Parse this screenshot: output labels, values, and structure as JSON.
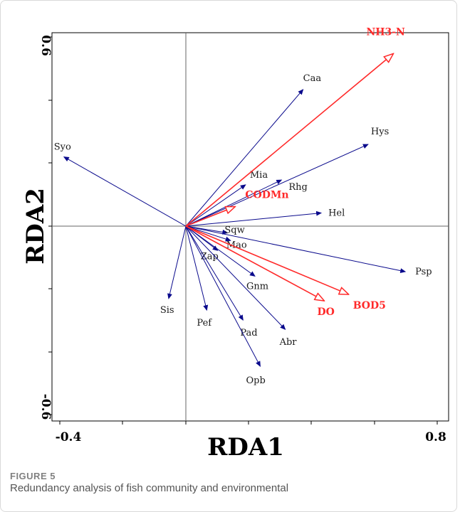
{
  "figure": {
    "label": "FIGURE 5",
    "caption": "Redundancy analysis of fish community and environmental"
  },
  "chart_data": {
    "type": "scatter",
    "subtype": "rda-biplot",
    "title": "",
    "xlabel": "RDA1",
    "ylabel": "RDA2",
    "xlim": [
      -0.4,
      0.8
    ],
    "ylim": [
      -0.6,
      0.6
    ],
    "x_tick_labels": [
      "-0.4",
      "0.8"
    ],
    "y_tick_labels": [
      "0.6",
      "-0.6"
    ],
    "grid": false,
    "colors": {
      "species": "#0a0a8c",
      "environment": "#ff2a2a"
    },
    "species": [
      {
        "name": "Syo",
        "x": -0.39,
        "y": 0.216
      },
      {
        "name": "Caa",
        "x": 0.375,
        "y": 0.426
      },
      {
        "name": "Hys",
        "x": 0.583,
        "y": 0.255
      },
      {
        "name": "Mia",
        "x": 0.191,
        "y": 0.129
      },
      {
        "name": "Rhg",
        "x": 0.306,
        "y": 0.144
      },
      {
        "name": "Hel",
        "x": 0.433,
        "y": 0.041
      },
      {
        "name": "Sqw",
        "x": 0.133,
        "y": -0.021
      },
      {
        "name": "Mao",
        "x": 0.143,
        "y": -0.045
      },
      {
        "name": "Zap",
        "x": 0.102,
        "y": -0.076
      },
      {
        "name": "Psp",
        "x": 0.702,
        "y": -0.142
      },
      {
        "name": "Gnm",
        "x": 0.221,
        "y": -0.156
      },
      {
        "name": "Sis",
        "x": -0.055,
        "y": -0.226
      },
      {
        "name": "Pef",
        "x": 0.067,
        "y": -0.262
      },
      {
        "name": "Pad",
        "x": 0.183,
        "y": -0.293
      },
      {
        "name": "Abr",
        "x": 0.318,
        "y": -0.322
      },
      {
        "name": "Opb",
        "x": 0.238,
        "y": -0.437
      }
    ],
    "environment": [
      {
        "name": "NH3-N",
        "x": 0.664,
        "y": 0.538
      },
      {
        "name": "CODMn",
        "x": 0.158,
        "y": 0.061
      },
      {
        "name": "DO",
        "x": 0.443,
        "y": -0.233
      },
      {
        "name": "BOD5",
        "x": 0.521,
        "y": -0.213
      }
    ]
  }
}
